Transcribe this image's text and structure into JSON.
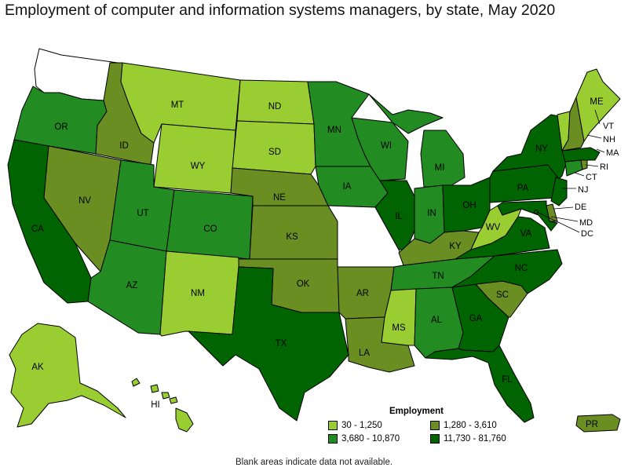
{
  "title": "Employment of computer and information systems managers, by state, May 2020",
  "colors": {
    "bin1": "#9acd32",
    "bin2": "#6b8e23",
    "bin3": "#228b22",
    "bin4": "#006400",
    "no_data": "#ffffff",
    "stroke": "#000000"
  },
  "legend": {
    "title": "Employment",
    "items": [
      {
        "label": "30 - 1,250",
        "bin": "bin1"
      },
      {
        "label": "1,280 - 3,610",
        "bin": "bin2"
      },
      {
        "label": "3,680 - 10,870",
        "bin": "bin3"
      },
      {
        "label": "11,730 - 81,760",
        "bin": "bin4"
      }
    ]
  },
  "footnote": "Blank areas indicate data not available.",
  "states": {
    "WA": {
      "label": "",
      "bin": "no_data"
    },
    "OR": {
      "label": "OR",
      "bin": "bin3"
    },
    "CA": {
      "label": "CA",
      "bin": "bin4"
    },
    "ID": {
      "label": "ID",
      "bin": "bin2"
    },
    "NV": {
      "label": "NV",
      "bin": "bin2"
    },
    "MT": {
      "label": "MT",
      "bin": "bin1"
    },
    "WY": {
      "label": "WY",
      "bin": "bin1"
    },
    "UT": {
      "label": "UT",
      "bin": "bin3"
    },
    "AZ": {
      "label": "AZ",
      "bin": "bin3"
    },
    "CO": {
      "label": "CO",
      "bin": "bin3"
    },
    "NM": {
      "label": "NM",
      "bin": "bin1"
    },
    "ND": {
      "label": "ND",
      "bin": "bin1"
    },
    "SD": {
      "label": "SD",
      "bin": "bin1"
    },
    "NE": {
      "label": "NE",
      "bin": "bin2"
    },
    "KS": {
      "label": "KS",
      "bin": "bin2"
    },
    "OK": {
      "label": "OK",
      "bin": "bin2"
    },
    "TX": {
      "label": "TX",
      "bin": "bin4"
    },
    "MN": {
      "label": "MN",
      "bin": "bin3"
    },
    "IA": {
      "label": "IA",
      "bin": "bin3"
    },
    "MO": {
      "label": "",
      "bin": "no_data"
    },
    "AR": {
      "label": "AR",
      "bin": "bin2"
    },
    "LA": {
      "label": "LA",
      "bin": "bin2"
    },
    "WI": {
      "label": "WI",
      "bin": "bin3"
    },
    "IL": {
      "label": "IL",
      "bin": "bin4"
    },
    "MI": {
      "label": "MI",
      "bin": "bin3"
    },
    "IN": {
      "label": "IN",
      "bin": "bin3"
    },
    "OH": {
      "label": "OH",
      "bin": "bin4"
    },
    "KY": {
      "label": "KY",
      "bin": "bin2"
    },
    "TN": {
      "label": "TN",
      "bin": "bin3"
    },
    "MS": {
      "label": "MS",
      "bin": "bin1"
    },
    "AL": {
      "label": "AL",
      "bin": "bin3"
    },
    "GA": {
      "label": "GA",
      "bin": "bin4"
    },
    "FL": {
      "label": "FL",
      "bin": "bin4"
    },
    "SC": {
      "label": "SC",
      "bin": "bin2"
    },
    "NC": {
      "label": "NC",
      "bin": "bin4"
    },
    "VA": {
      "label": "VA",
      "bin": "bin4"
    },
    "WV": {
      "label": "WV",
      "bin": "bin1"
    },
    "PA": {
      "label": "PA",
      "bin": "bin4"
    },
    "NY": {
      "label": "NY",
      "bin": "bin4"
    },
    "NJ": {
      "label": "NJ",
      "bin": "bin4"
    },
    "DE": {
      "label": "DE",
      "bin": "bin2"
    },
    "MD": {
      "label": "MD",
      "bin": "bin4"
    },
    "DC": {
      "label": "DC",
      "bin": "bin4"
    },
    "CT": {
      "label": "CT",
      "bin": "bin3"
    },
    "RI": {
      "label": "RI",
      "bin": "bin2"
    },
    "MA": {
      "label": "MA",
      "bin": "bin4"
    },
    "VT": {
      "label": "VT",
      "bin": "bin1"
    },
    "NH": {
      "label": "NH",
      "bin": "bin2"
    },
    "ME": {
      "label": "ME",
      "bin": "bin1"
    },
    "AK": {
      "label": "AK",
      "bin": "bin1"
    },
    "HI": {
      "label": "HI",
      "bin": "bin1"
    },
    "PR": {
      "label": "PR",
      "bin": "bin2"
    }
  }
}
